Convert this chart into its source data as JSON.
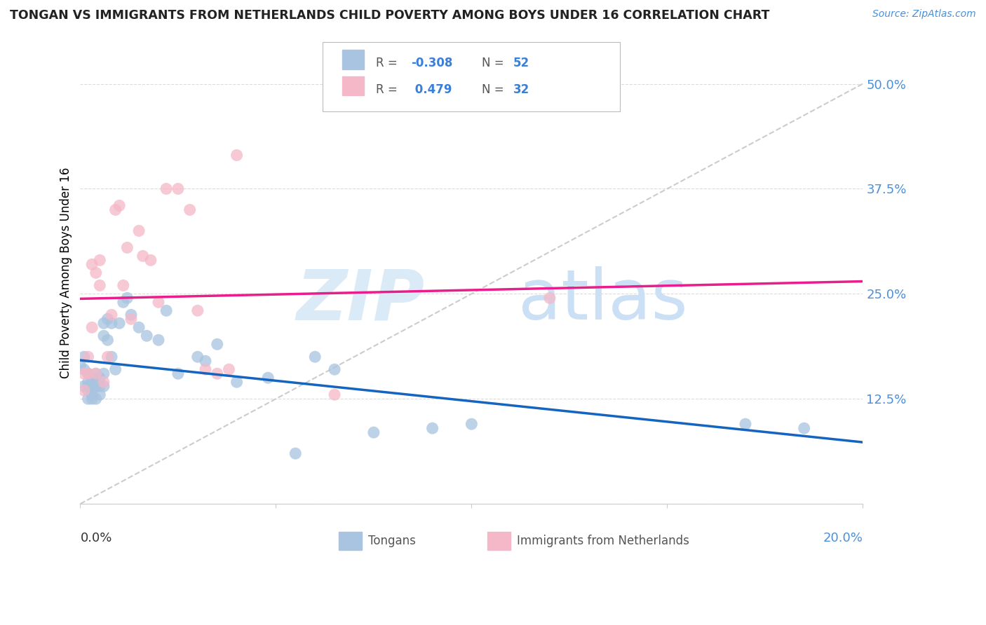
{
  "title": "TONGAN VS IMMIGRANTS FROM NETHERLANDS CHILD POVERTY AMONG BOYS UNDER 16 CORRELATION CHART",
  "source": "Source: ZipAtlas.com",
  "ylabel": "Child Poverty Among Boys Under 16",
  "xlim": [
    0.0,
    0.2
  ],
  "ylim": [
    0.0,
    0.55
  ],
  "yticks": [
    0.0,
    0.125,
    0.25,
    0.375,
    0.5
  ],
  "ytick_labels": [
    "",
    "12.5%",
    "25.0%",
    "37.5%",
    "50.0%"
  ],
  "blue_color": "#a8c4e0",
  "pink_color": "#f4b8c8",
  "line_blue": "#1565c0",
  "line_pink": "#e91e8c",
  "diagonal_color": "#cccccc",
  "background_color": "#ffffff",
  "grid_color": "#cccccc",
  "tongans_x": [
    0.0,
    0.001,
    0.001,
    0.001,
    0.002,
    0.002,
    0.002,
    0.002,
    0.002,
    0.003,
    0.003,
    0.003,
    0.003,
    0.003,
    0.004,
    0.004,
    0.004,
    0.004,
    0.005,
    0.005,
    0.005,
    0.006,
    0.006,
    0.006,
    0.006,
    0.007,
    0.007,
    0.008,
    0.008,
    0.009,
    0.01,
    0.011,
    0.012,
    0.013,
    0.015,
    0.017,
    0.02,
    0.022,
    0.025,
    0.03,
    0.032,
    0.035,
    0.04,
    0.048,
    0.055,
    0.06,
    0.065,
    0.075,
    0.09,
    0.1,
    0.17,
    0.185
  ],
  "tongans_y": [
    0.165,
    0.175,
    0.16,
    0.14,
    0.155,
    0.145,
    0.14,
    0.135,
    0.125,
    0.15,
    0.145,
    0.135,
    0.13,
    0.125,
    0.155,
    0.145,
    0.14,
    0.125,
    0.15,
    0.14,
    0.13,
    0.215,
    0.2,
    0.155,
    0.14,
    0.22,
    0.195,
    0.215,
    0.175,
    0.16,
    0.215,
    0.24,
    0.245,
    0.225,
    0.21,
    0.2,
    0.195,
    0.23,
    0.155,
    0.175,
    0.17,
    0.19,
    0.145,
    0.15,
    0.06,
    0.175,
    0.16,
    0.085,
    0.09,
    0.095,
    0.095,
    0.09
  ],
  "netherlands_x": [
    0.001,
    0.001,
    0.002,
    0.002,
    0.003,
    0.003,
    0.004,
    0.004,
    0.005,
    0.005,
    0.006,
    0.007,
    0.008,
    0.009,
    0.01,
    0.011,
    0.012,
    0.013,
    0.015,
    0.016,
    0.018,
    0.02,
    0.022,
    0.025,
    0.028,
    0.03,
    0.032,
    0.035,
    0.038,
    0.04,
    0.065,
    0.12
  ],
  "netherlands_y": [
    0.155,
    0.135,
    0.175,
    0.155,
    0.285,
    0.21,
    0.275,
    0.155,
    0.29,
    0.26,
    0.145,
    0.175,
    0.225,
    0.35,
    0.355,
    0.26,
    0.305,
    0.22,
    0.325,
    0.295,
    0.29,
    0.24,
    0.375,
    0.375,
    0.35,
    0.23,
    0.16,
    0.155,
    0.16,
    0.415,
    0.13,
    0.245
  ]
}
